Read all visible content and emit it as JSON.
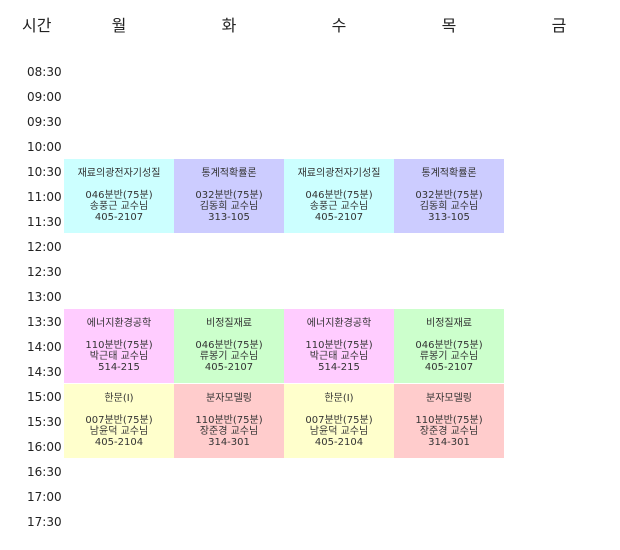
{
  "header": {
    "time": "시간",
    "days": [
      "월",
      "화",
      "수",
      "목",
      "금"
    ]
  },
  "times": [
    "08:30",
    "09:00",
    "09:30",
    "10:00",
    "10:30",
    "11:00",
    "11:30",
    "12:00",
    "12:30",
    "13:00",
    "13:30",
    "14:00",
    "14:30",
    "15:00",
    "15:30",
    "16:00",
    "16:30",
    "17:00",
    "17:30"
  ],
  "colors": {
    "cyan": "#ccffff",
    "purple": "#ccccff",
    "pink": "#ffccff",
    "green": "#ccffcc",
    "yellow": "#ffffcc",
    "salmon": "#ffcccc"
  },
  "courses": [
    {
      "day": 0,
      "slot": 4,
      "color": "#ccffff",
      "title": "재료의광전자기성질",
      "section": "046분반(75분)",
      "professor": "송풍근 교수님",
      "room": "405-2107"
    },
    {
      "day": 1,
      "slot": 4,
      "color": "#ccccff",
      "title": "통계적확률론",
      "section": "032분반(75분)",
      "professor": "김동희 교수님",
      "room": "313-105"
    },
    {
      "day": 2,
      "slot": 4,
      "color": "#ccffff",
      "title": "재료의광전자기성질",
      "section": "046분반(75분)",
      "professor": "송풍근 교수님",
      "room": "405-2107"
    },
    {
      "day": 3,
      "slot": 4,
      "color": "#ccccff",
      "title": "통계적확률론",
      "section": "032분반(75분)",
      "professor": "김동희 교수님",
      "room": "313-105"
    },
    {
      "day": 0,
      "slot": 10,
      "color": "#ffccff",
      "title": "에너지환경공학",
      "section": "110분반(75분)",
      "professor": "박근태 교수님",
      "room": "514-215"
    },
    {
      "day": 1,
      "slot": 10,
      "color": "#ccffcc",
      "title": "비정질재료",
      "section": "046분반(75분)",
      "professor": "류봉기 교수님",
      "room": "405-2107"
    },
    {
      "day": 2,
      "slot": 10,
      "color": "#ffccff",
      "title": "에너지환경공학",
      "section": "110분반(75분)",
      "professor": "박근태 교수님",
      "room": "514-215"
    },
    {
      "day": 3,
      "slot": 10,
      "color": "#ccffcc",
      "title": "비정질재료",
      "section": "046분반(75분)",
      "professor": "류봉기 교수님",
      "room": "405-2107"
    },
    {
      "day": 0,
      "slot": 13,
      "color": "#ffffcc",
      "title": "한문(I)",
      "section": "007분반(75분)",
      "professor": "남윤덕 교수님",
      "room": "405-2104"
    },
    {
      "day": 1,
      "slot": 13,
      "color": "#ffcccc",
      "title": "분자모델링",
      "section": "110분반(75분)",
      "professor": "장준경 교수님",
      "room": "314-301"
    },
    {
      "day": 2,
      "slot": 13,
      "color": "#ffffcc",
      "title": "한문(I)",
      "section": "007분반(75분)",
      "professor": "남윤덕 교수님",
      "room": "405-2104"
    },
    {
      "day": 3,
      "slot": 13,
      "color": "#ffcccc",
      "title": "분자모델링",
      "section": "110분반(75분)",
      "professor": "장준경 교수님",
      "room": "314-301"
    }
  ]
}
